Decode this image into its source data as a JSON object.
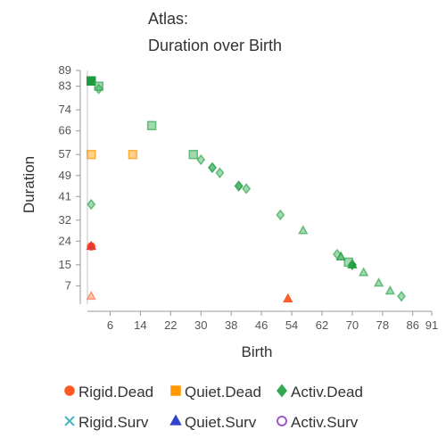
{
  "chart_data": {
    "type": "scatter",
    "title": [
      "Atlas:",
      "Duration over Birth"
    ],
    "xlabel": "Birth",
    "ylabel": "Duration",
    "xlim": [
      0,
      91
    ],
    "ylim": [
      0,
      89
    ],
    "x_ticks": [
      6,
      14,
      22,
      30,
      38,
      46,
      54,
      62,
      70,
      78,
      86,
      91
    ],
    "y_ticks": [
      7,
      15,
      24,
      32,
      41,
      49,
      57,
      66,
      74,
      83,
      89
    ],
    "grid": false,
    "legend_position": "bottom",
    "series": [
      {
        "name": "Rigid.Dead",
        "marker": "circle",
        "color": "#ff5722",
        "points": [
          {
            "x": 1,
            "y": 22,
            "opacity": 1.0
          }
        ]
      },
      {
        "name": "Quiet.Dead",
        "marker": "square",
        "color": "#ff9800",
        "points": [
          {
            "x": 1,
            "y": 57,
            "opacity": 0.45
          },
          {
            "x": 12,
            "y": 57,
            "opacity": 0.45
          }
        ]
      },
      {
        "name": "Activ.Dead",
        "marker": "diamond",
        "color": "#33a852",
        "points": [
          {
            "x": 1,
            "y": 38,
            "opacity": 0.45
          },
          {
            "x": 3,
            "y": 82,
            "opacity": 0.45
          },
          {
            "x": 30,
            "y": 55,
            "opacity": 0.45
          },
          {
            "x": 33,
            "y": 52,
            "opacity": 0.7
          },
          {
            "x": 35,
            "y": 50,
            "opacity": 0.45
          },
          {
            "x": 40,
            "y": 45,
            "opacity": 0.8
          },
          {
            "x": 42,
            "y": 44,
            "opacity": 0.45
          },
          {
            "x": 51,
            "y": 34,
            "opacity": 0.45
          },
          {
            "x": 66,
            "y": 19,
            "opacity": 0.45
          },
          {
            "x": 70,
            "y": 15,
            "opacity": 0.8
          },
          {
            "x": 83,
            "y": 3,
            "opacity": 0.45
          }
        ]
      },
      {
        "name": "Rigid.Surv",
        "marker": "x",
        "color": "#4db6c4",
        "points": []
      },
      {
        "name": "Quiet.Surv",
        "marker": "triangle",
        "color": "#3344cc",
        "points": [
          {
            "x": 1,
            "y": 22,
            "opacity": 1.0,
            "color": "#e53935"
          },
          {
            "x": 1,
            "y": 3,
            "opacity": 0.4,
            "color": "#ff7043"
          },
          {
            "x": 53,
            "y": 2,
            "opacity": 0.9,
            "color": "#ff5722"
          },
          {
            "x": 57,
            "y": 28,
            "opacity": 0.45,
            "color": "#33a852"
          },
          {
            "x": 67,
            "y": 18,
            "opacity": 0.7,
            "color": "#33a852"
          },
          {
            "x": 70,
            "y": 15,
            "opacity": 1.0,
            "color": "#1e9a3c"
          },
          {
            "x": 73,
            "y": 12,
            "opacity": 0.45,
            "color": "#33a852"
          },
          {
            "x": 77,
            "y": 8,
            "opacity": 0.45,
            "color": "#33a852"
          },
          {
            "x": 80,
            "y": 5,
            "opacity": 0.45,
            "color": "#33a852"
          }
        ]
      },
      {
        "name": "Activ.Surv",
        "marker": "circle-open",
        "color": "#9c5ac8",
        "points": [
          {
            "x": 1,
            "y": 85,
            "opacity": 1.0,
            "color": "#1e9a3c",
            "marker": "square"
          },
          {
            "x": 3,
            "y": 83,
            "opacity": 0.45,
            "color": "#33a852",
            "marker": "square"
          },
          {
            "x": 17,
            "y": 68,
            "opacity": 0.45,
            "color": "#33a852",
            "marker": "square"
          },
          {
            "x": 28,
            "y": 57,
            "opacity": 0.45,
            "color": "#33a852",
            "marker": "square"
          },
          {
            "x": 69,
            "y": 16,
            "opacity": 0.45,
            "color": "#33a852",
            "marker": "square"
          }
        ]
      }
    ]
  }
}
